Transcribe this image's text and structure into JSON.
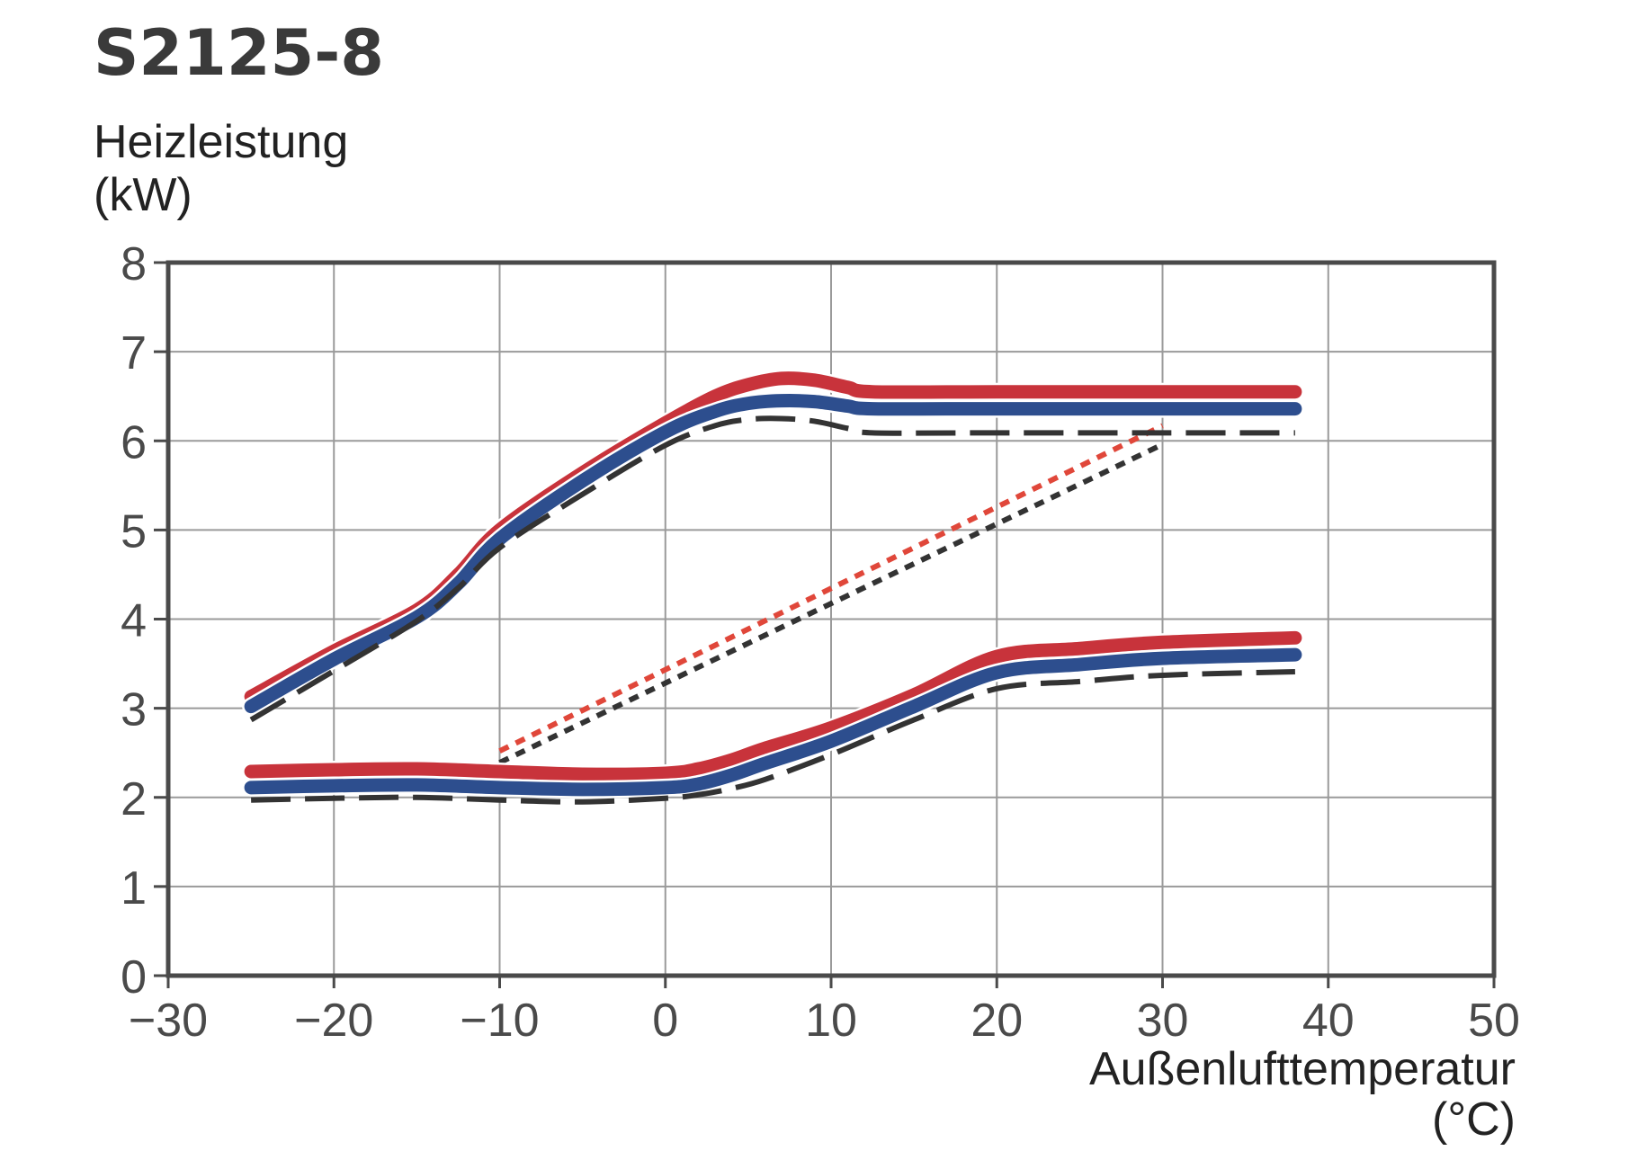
{
  "chart_data": {
    "type": "line",
    "title": "S2125-8",
    "ylabel": [
      "Heizleistung",
      "(kW)"
    ],
    "xlabel": [
      "Außenlufttemperatur",
      "(°C)"
    ],
    "xlim": [
      -30,
      50
    ],
    "ylim": [
      0,
      8
    ],
    "xticks": [
      -30,
      -20,
      -10,
      0,
      10,
      20,
      30,
      40,
      50
    ],
    "xtick_labels": [
      "−30",
      "−20",
      "−10",
      "0",
      "10",
      "20",
      "30",
      "40",
      "50"
    ],
    "yticks": [
      0,
      1,
      2,
      3,
      4,
      5,
      6,
      7,
      8
    ],
    "ytick_labels": [
      "0",
      "1",
      "2",
      "3",
      "4",
      "5",
      "6",
      "7",
      "8"
    ],
    "grid": true,
    "legend": "none",
    "colors": {
      "frame": "#4a4a4a",
      "grid": "#9a9a9a"
    },
    "series": [
      {
        "color": "#e0473a",
        "style": "dotted",
        "x": [
          -10,
          30
        ],
        "y": [
          2.52,
          6.17
        ]
      },
      {
        "color": "#333333",
        "style": "dotted",
        "x": [
          -10,
          30
        ],
        "y": [
          2.39,
          5.96
        ]
      },
      {
        "color": "#c8333b",
        "style": "solid",
        "x": [
          -25,
          -20,
          -15,
          -12.5,
          -10,
          -5,
          0,
          3,
          5,
          7,
          9,
          11,
          12.5,
          20,
          30,
          38
        ],
        "y": [
          3.13,
          3.64,
          4.1,
          4.5,
          5.0,
          5.64,
          6.2,
          6.5,
          6.63,
          6.7,
          6.68,
          6.6,
          6.55,
          6.55,
          6.55,
          6.55
        ]
      },
      {
        "color": "#2d4e8e",
        "style": "solid",
        "x": [
          -25,
          -20,
          -15,
          -12.5,
          -10,
          -5,
          0,
          3,
          5,
          7,
          9,
          11,
          12.5,
          20,
          30,
          38
        ],
        "y": [
          3.02,
          3.55,
          4.02,
          4.4,
          4.9,
          5.55,
          6.1,
          6.33,
          6.42,
          6.45,
          6.44,
          6.39,
          6.36,
          6.36,
          6.36,
          6.36
        ]
      },
      {
        "color": "#333333",
        "style": "dashed",
        "x": [
          -25,
          -20,
          -15,
          -12.5,
          -10,
          -5,
          0,
          3,
          5,
          7,
          9,
          11,
          12.5,
          20,
          30,
          38
        ],
        "y": [
          2.87,
          3.42,
          3.98,
          4.35,
          4.8,
          5.4,
          5.95,
          6.17,
          6.24,
          6.25,
          6.22,
          6.14,
          6.09,
          6.09,
          6.09,
          6.09
        ]
      },
      {
        "color": "#c8333b",
        "style": "solid",
        "x": [
          -25,
          -20,
          -15,
          -10,
          -5,
          0,
          2,
          4,
          6,
          10,
          15,
          20,
          25,
          30,
          38
        ],
        "y": [
          2.29,
          2.31,
          2.32,
          2.29,
          2.26,
          2.27,
          2.32,
          2.42,
          2.55,
          2.78,
          3.15,
          3.58,
          3.67,
          3.74,
          3.79
        ]
      },
      {
        "color": "#2d4e8e",
        "style": "solid",
        "x": [
          -25,
          -20,
          -15,
          -10,
          -5,
          0,
          2,
          4,
          6,
          10,
          15,
          20,
          25,
          30,
          38
        ],
        "y": [
          2.11,
          2.13,
          2.14,
          2.11,
          2.09,
          2.11,
          2.15,
          2.25,
          2.38,
          2.63,
          3.02,
          3.4,
          3.49,
          3.56,
          3.6
        ]
      },
      {
        "color": "#333333",
        "style": "dashed",
        "x": [
          -25,
          -20,
          -15,
          -10,
          -5,
          0,
          2,
          4,
          6,
          10,
          15,
          20,
          25,
          30,
          38
        ],
        "y": [
          1.97,
          1.99,
          2.0,
          1.97,
          1.95,
          1.99,
          2.03,
          2.1,
          2.2,
          2.48,
          2.87,
          3.22,
          3.3,
          3.37,
          3.41
        ]
      }
    ]
  }
}
